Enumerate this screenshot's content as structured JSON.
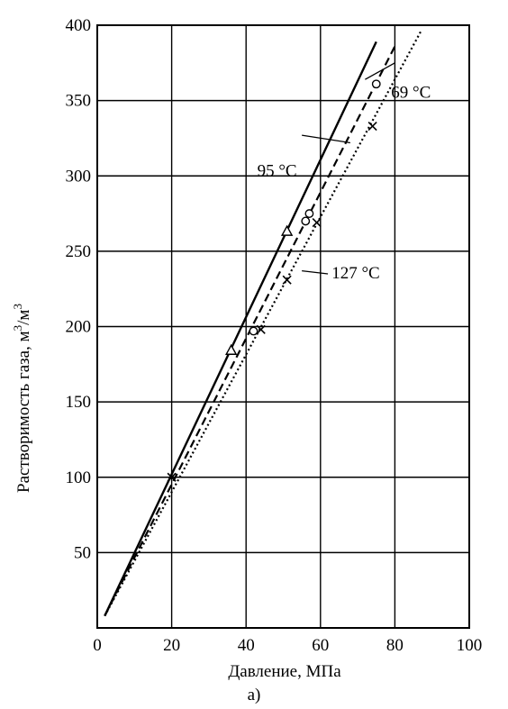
{
  "chart_data": {
    "type": "line",
    "title": "",
    "xlabel": "Давление, МПа",
    "ylabel_text": "Растворимость газа, м",
    "ylabel_sup1": "3",
    "ylabel_mid": "/м",
    "ylabel_sup2": "3",
    "caption": "а)",
    "xlim": [
      0,
      100
    ],
    "ylim": [
      0,
      400
    ],
    "x_ticks": [
      "0",
      "20",
      "40",
      "60",
      "80",
      "100"
    ],
    "y_ticks": [
      "50",
      "100",
      "150",
      "200",
      "250",
      "300",
      "350",
      "400"
    ],
    "grid": true,
    "series": [
      {
        "name": "69 °C",
        "style": "solid",
        "marker": "triangle",
        "line": [
          [
            2,
            8
          ],
          [
            75,
            389
          ]
        ],
        "points": [
          [
            36,
            184
          ],
          [
            51,
            263
          ]
        ],
        "label_pos": [
          79,
          352
        ],
        "leader_to": [
          72,
          364
        ],
        "leader_from": [
          80,
          375
        ]
      },
      {
        "name": "95 °C",
        "style": "dashed",
        "marker": "circle",
        "line": [
          [
            2,
            8
          ],
          [
            80,
            386
          ]
        ],
        "points": [
          [
            42,
            197
          ],
          [
            56,
            270
          ],
          [
            57,
            275
          ],
          [
            75,
            361
          ]
        ],
        "label_pos": [
          43,
          300
        ],
        "leader_to": [
          68,
          322
        ],
        "leader_from": [
          55,
          327
        ]
      },
      {
        "name": "127 °C",
        "style": "dotted",
        "marker": "x",
        "line": [
          [
            2,
            8
          ],
          [
            87,
            396
          ]
        ],
        "points": [
          [
            20,
            100
          ],
          [
            44,
            198
          ],
          [
            51,
            231
          ],
          [
            59,
            269
          ],
          [
            74,
            333
          ]
        ],
        "label_pos": [
          63,
          232
        ],
        "leader_to": [
          55,
          237
        ],
        "leader_from": [
          62,
          235
        ]
      }
    ]
  }
}
